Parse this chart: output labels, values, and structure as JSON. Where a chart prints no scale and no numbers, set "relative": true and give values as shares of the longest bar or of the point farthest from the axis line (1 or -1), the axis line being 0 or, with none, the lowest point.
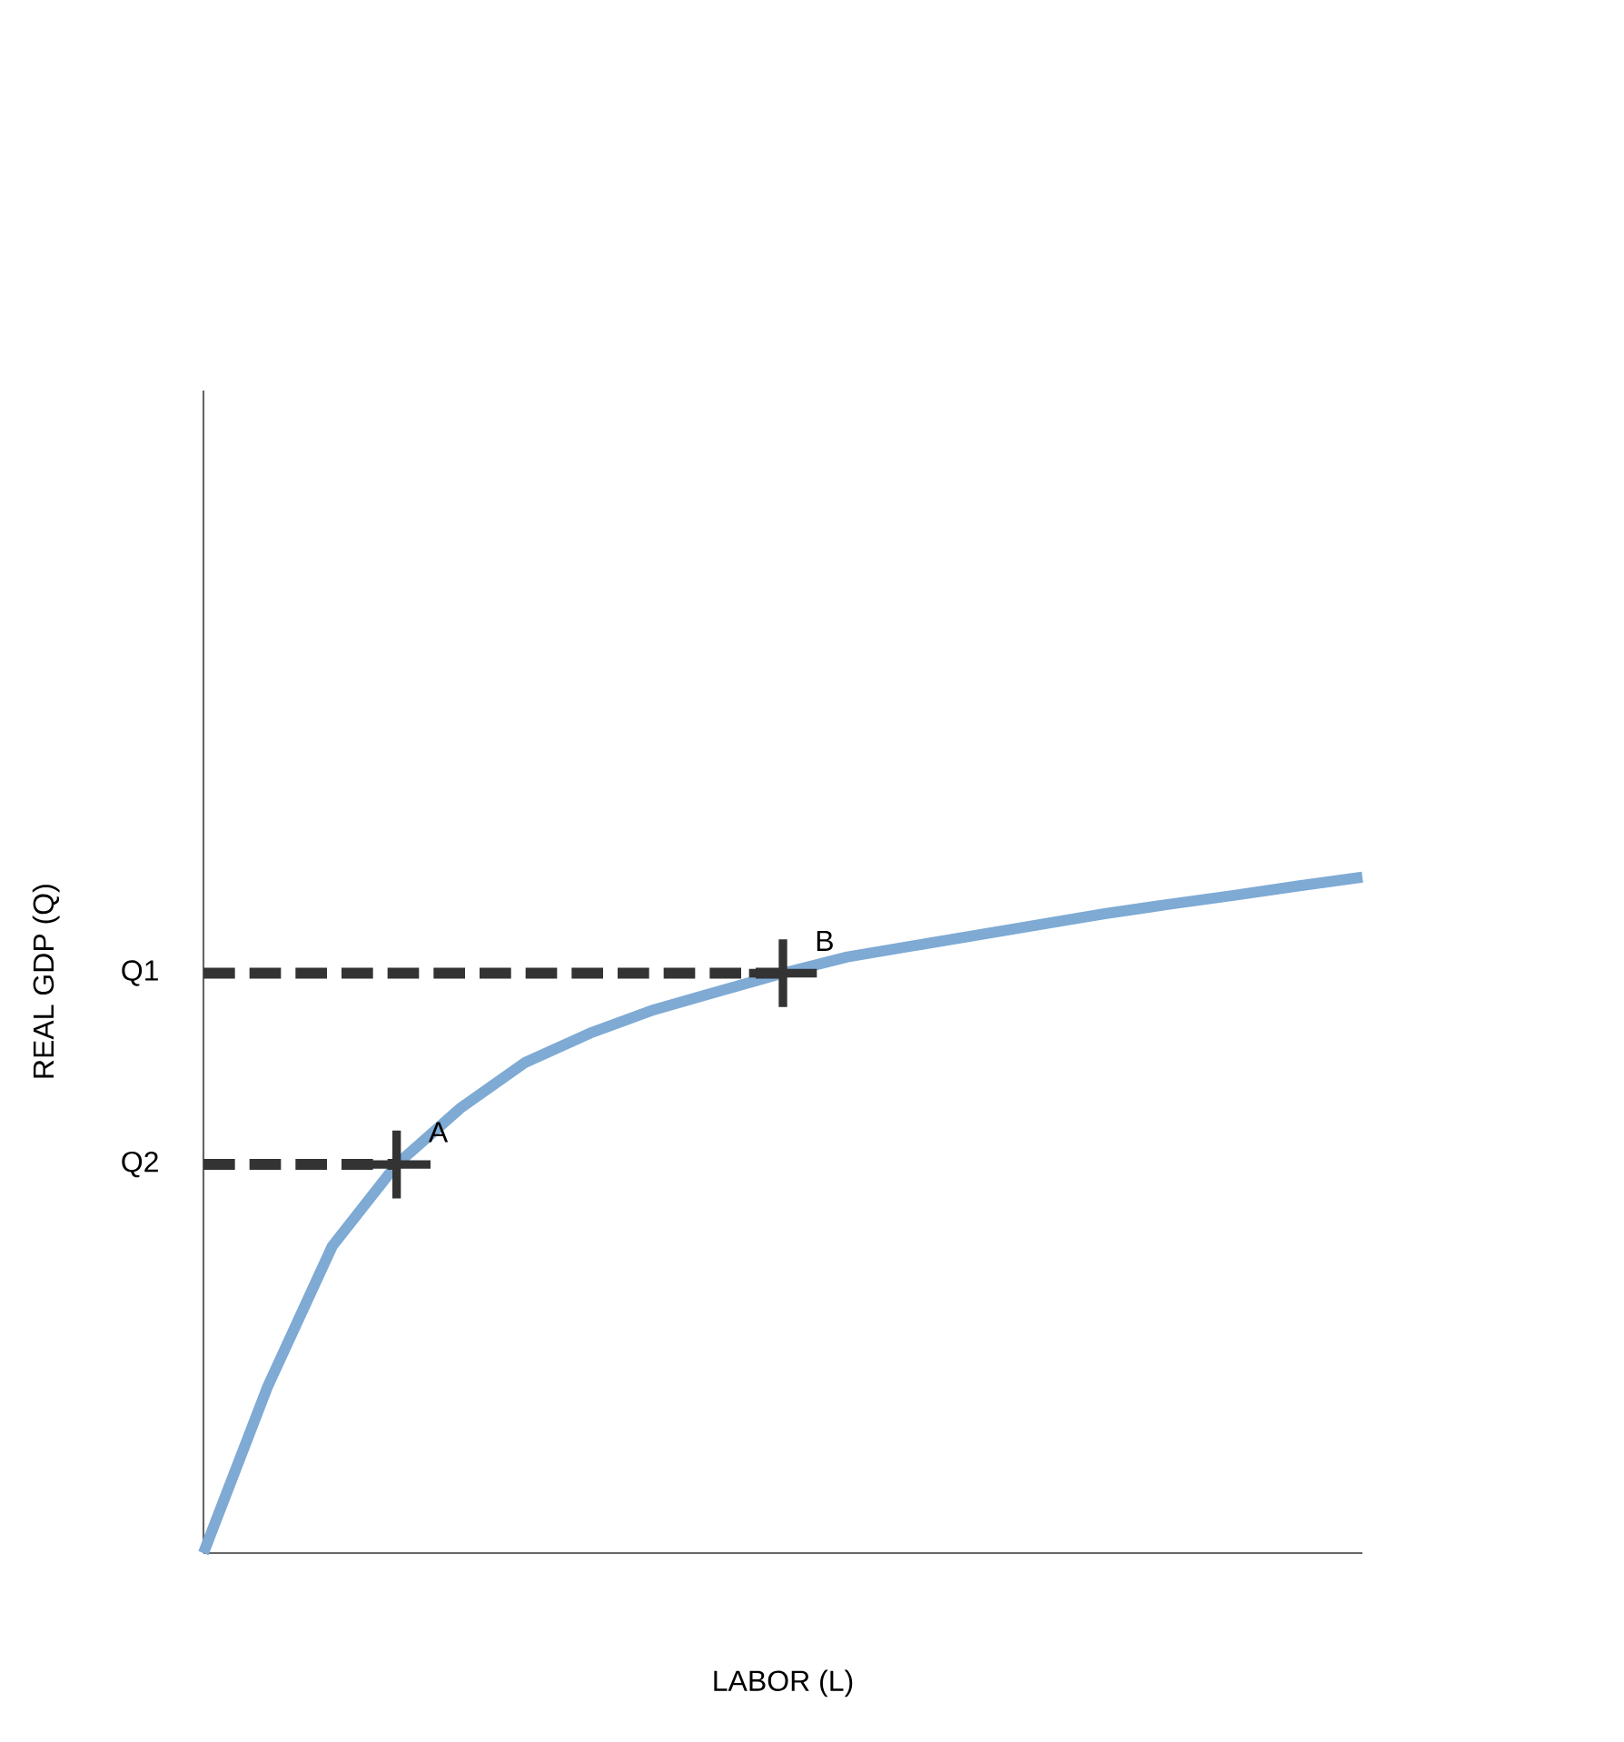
{
  "chart_data": {
    "type": "line",
    "relative": true,
    "xlabel": "LABOR (L)",
    "ylabel": "REAL GDP (Q)",
    "categories": [
      null,
      null,
      null,
      null,
      null,
      null,
      null,
      null,
      null,
      null,
      null,
      null,
      null,
      null,
      null,
      null,
      null,
      null,
      null
    ],
    "series": [
      {
        "color": "#7eaad4",
        "values": [
          0,
          0.247,
          0.454,
          0.575,
          0.659,
          0.726,
          0.769,
          0.804,
          0.831,
          0.858,
          0.882,
          0.898,
          0.914,
          0.93,
          0.946,
          0.96,
          0.973,
          0.987,
          1
        ]
      }
    ],
    "ref_lines": [
      {
        "axis": "y",
        "value": 0.858,
        "label": "Q1",
        "color": "#333333",
        "line_style": "dashed"
      },
      {
        "axis": "y",
        "value": 0.575,
        "label": "Q2",
        "color": "#333333",
        "line_style": "dashed"
      }
    ],
    "annotations": [
      "B",
      "A"
    ]
  }
}
